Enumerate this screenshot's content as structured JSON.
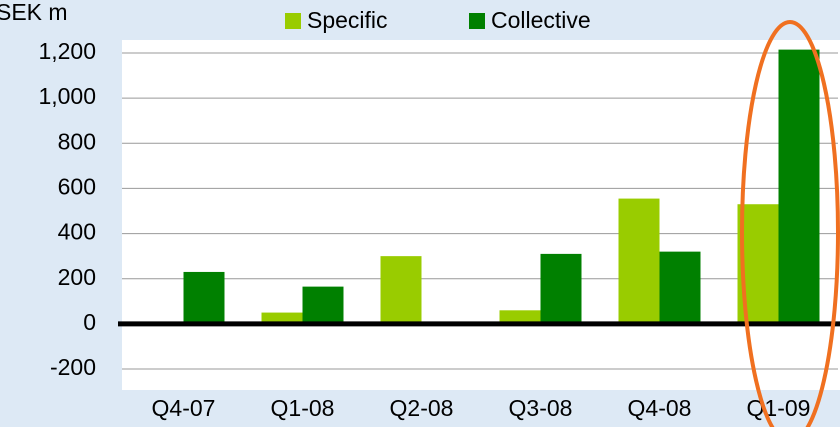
{
  "chart_data": {
    "type": "bar",
    "y_axis_label": "SEK m",
    "categories": [
      "Q4-07",
      "Q1-08",
      "Q2-08",
      "Q3-08",
      "Q4-08",
      "Q1-09"
    ],
    "series": [
      {
        "name": "Specific",
        "color": "#99cc00",
        "values": [
          10,
          50,
          300,
          60,
          555,
          530
        ]
      },
      {
        "name": "Collective",
        "color": "#008000",
        "values": [
          230,
          165,
          0,
          310,
          320,
          1215
        ]
      }
    ],
    "ylim": [
      -200,
      1200
    ],
    "yticks": [
      -200,
      0,
      200,
      400,
      600,
      800,
      {
        "value": 1000,
        "label": "1,000"
      },
      {
        "value": 1200,
        "label": "1,200"
      }
    ],
    "grid": true
  }
}
